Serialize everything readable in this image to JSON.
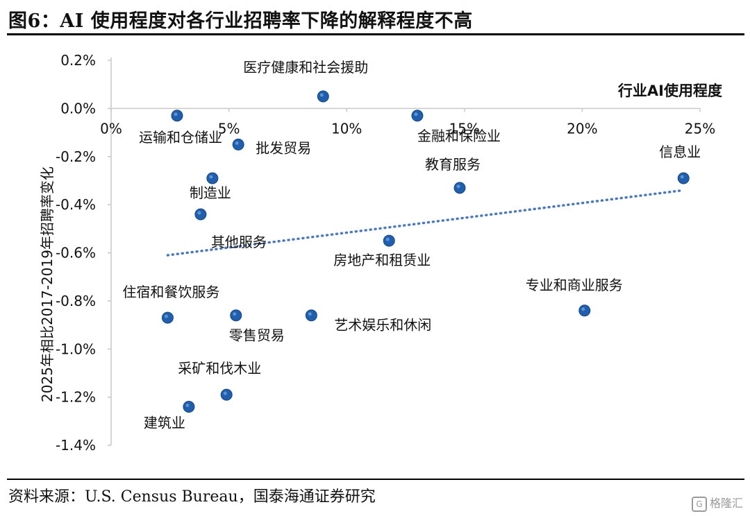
{
  "header": {
    "title": "图6：AI 使用程度对各行业招聘率下降的解释程度不高"
  },
  "footer": {
    "source": "资料来源：U.S. Census Bureau，国泰海通证券研究",
    "watermark": "格隆汇"
  },
  "colors": {
    "point": "#1f5fae",
    "trendline": "#4a78c0",
    "axis": "#c8c8c8"
  },
  "chart_data": {
    "type": "scatter",
    "xlabel": "行业AI使用程度",
    "ylabel": "2025年相比2017-2019年招聘率变化",
    "xlim": [
      0,
      25
    ],
    "ylim": [
      -1.4,
      0.2
    ],
    "x_ticks": [
      "0%",
      "5%",
      "10%",
      "15%",
      "20%",
      "25%"
    ],
    "y_ticks": [
      "0.2%",
      "0.0%",
      "-0.2%",
      "-0.4%",
      "-0.6%",
      "-0.8%",
      "-1.0%",
      "-1.2%",
      "-1.4%"
    ],
    "points": [
      {
        "label": "运输和仓储业",
        "x": 2.8,
        "y": -0.03
      },
      {
        "label": "批发贸易",
        "x": 5.4,
        "y": -0.15
      },
      {
        "label": "制造业",
        "x": 4.3,
        "y": -0.29
      },
      {
        "label": "其他服务",
        "x": 3.8,
        "y": -0.44
      },
      {
        "label": "医疗健康和社会援助",
        "x": 9.0,
        "y": 0.05
      },
      {
        "label": "金融和保险业",
        "x": 13.0,
        "y": -0.03
      },
      {
        "label": "教育服务",
        "x": 14.8,
        "y": -0.33
      },
      {
        "label": "信息业",
        "x": 24.3,
        "y": -0.29
      },
      {
        "label": "房地产和租赁业",
        "x": 11.8,
        "y": -0.55
      },
      {
        "label": "住宿和餐饮服务",
        "x": 2.4,
        "y": -0.87
      },
      {
        "label": "零售贸易",
        "x": 5.3,
        "y": -0.86
      },
      {
        "label": "艺术娱乐和休闲",
        "x": 8.5,
        "y": -0.86
      },
      {
        "label": "专业和商业服务",
        "x": 20.1,
        "y": -0.84
      },
      {
        "label": "采矿和伐木业",
        "x": 4.9,
        "y": -1.19
      },
      {
        "label": "建筑业",
        "x": 3.3,
        "y": -1.24
      }
    ],
    "trendline": {
      "x": [
        2.4,
        24.3
      ],
      "y": [
        -0.61,
        -0.34
      ],
      "style": "dotted"
    }
  }
}
